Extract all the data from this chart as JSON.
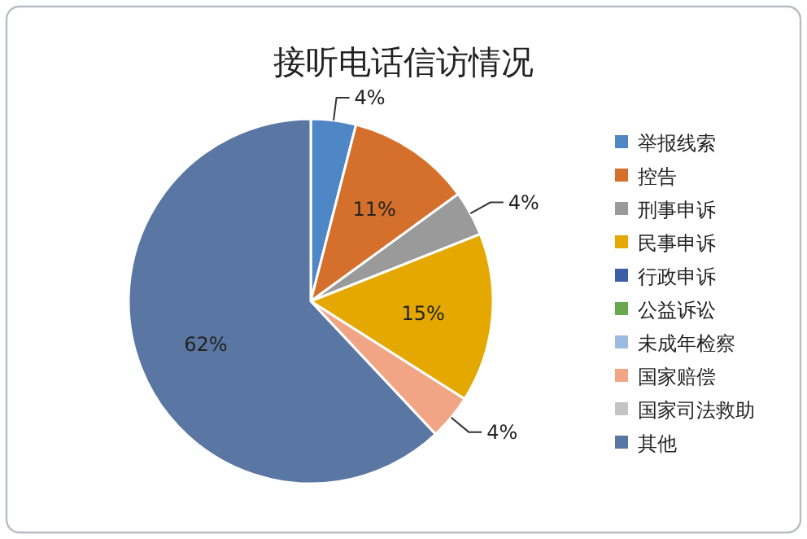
{
  "chart_data": {
    "type": "pie",
    "title": "接听电话信访情况",
    "categories": [
      "举报线索",
      "控告",
      "刑事申诉",
      "民事申诉",
      "行政申诉",
      "公益诉讼",
      "未成年检察",
      "国家赔偿",
      "国家司法救助",
      "其他"
    ],
    "values": [
      4,
      11,
      4,
      15,
      0,
      0,
      0,
      4,
      0,
      62
    ],
    "colors": [
      "#4f86c6",
      "#d4702b",
      "#9a9a9a",
      "#e5a800",
      "#3b5ea6",
      "#6aa84f",
      "#9dbbe0",
      "#f2a585",
      "#c4c4c4",
      "#5a76a2"
    ],
    "value_labels": [
      "4%",
      "11%",
      "4%",
      "15%",
      null,
      null,
      null,
      "4%",
      null,
      "62%"
    ],
    "legend": "right"
  }
}
